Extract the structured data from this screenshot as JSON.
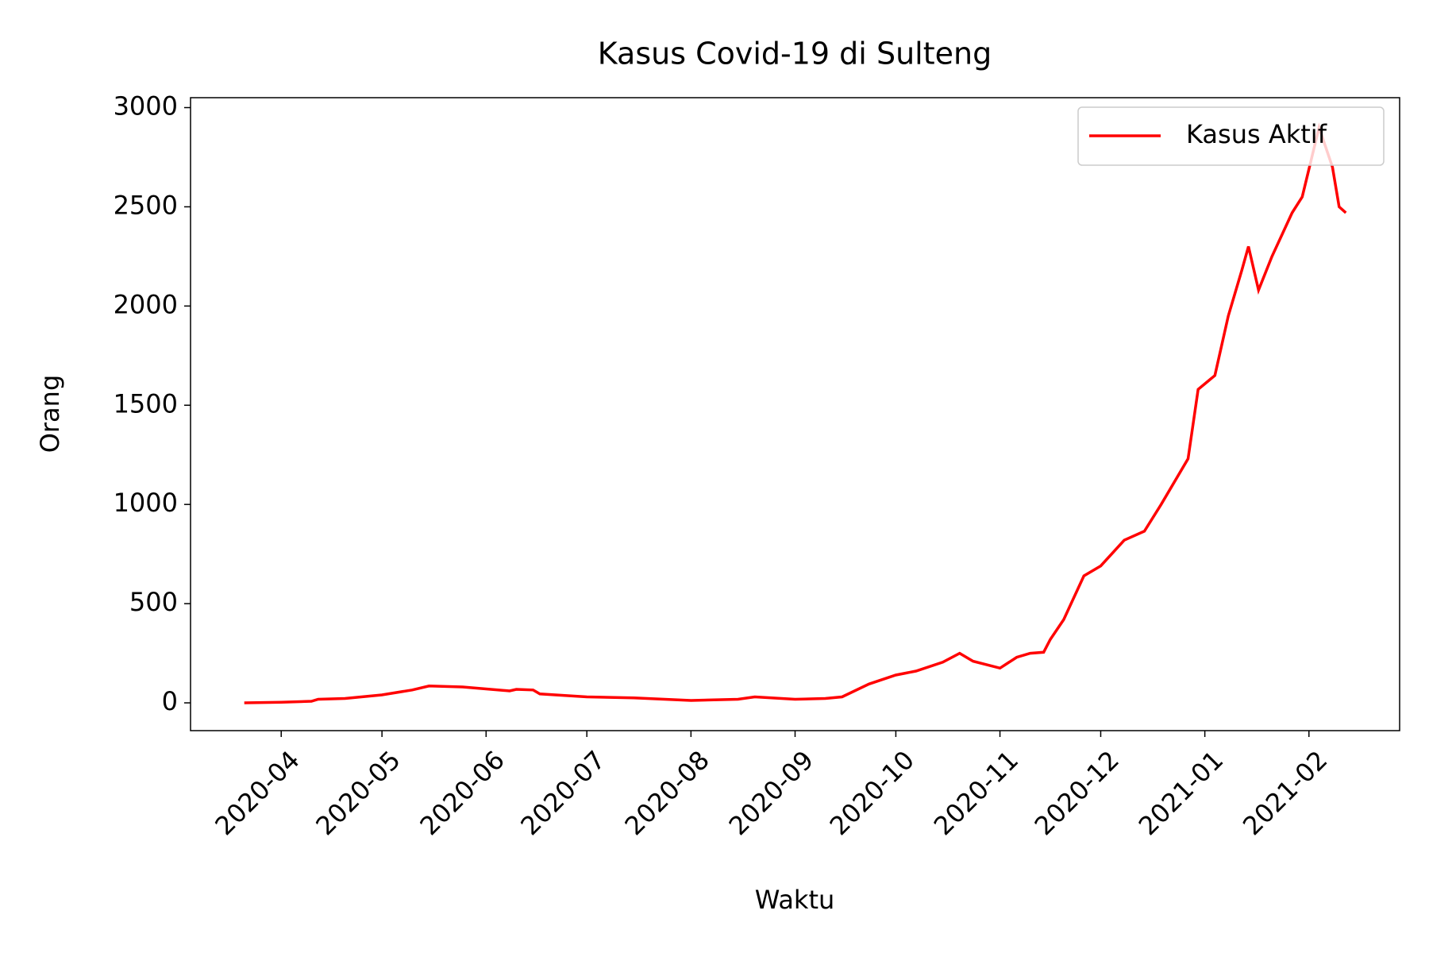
{
  "chart_data": {
    "type": "line",
    "title": "Kasus Covid-19 di Sulteng",
    "xlabel": "Waktu",
    "ylabel": "Orang",
    "x": [
      "2020-03-21",
      "2020-04-01",
      "2020-04-10",
      "2020-04-12",
      "2020-04-20",
      "2020-05-01",
      "2020-05-10",
      "2020-05-15",
      "2020-05-25",
      "2020-06-01",
      "2020-06-08",
      "2020-06-10",
      "2020-06-15",
      "2020-06-17",
      "2020-07-01",
      "2020-07-15",
      "2020-08-01",
      "2020-08-15",
      "2020-08-20",
      "2020-09-01",
      "2020-09-10",
      "2020-09-15",
      "2020-09-23",
      "2020-10-01",
      "2020-10-07",
      "2020-10-15",
      "2020-10-20",
      "2020-10-24",
      "2020-11-01",
      "2020-11-06",
      "2020-11-10",
      "2020-11-14",
      "2020-11-16",
      "2020-11-20",
      "2020-11-26",
      "2020-12-01",
      "2020-12-08",
      "2020-12-14",
      "2020-12-19",
      "2020-12-27",
      "2020-12-30",
      "2021-01-04",
      "2021-01-08",
      "2021-01-12",
      "2021-01-14",
      "2021-01-17",
      "2021-01-21",
      "2021-01-27",
      "2021-01-30",
      "2021-02-04",
      "2021-02-08",
      "2021-02-10",
      "2021-02-12"
    ],
    "series": [
      {
        "name": "Kasus Aktif",
        "color": "#ff0000",
        "values": [
          0,
          3,
          8,
          18,
          22,
          40,
          65,
          85,
          80,
          70,
          60,
          68,
          65,
          45,
          30,
          25,
          12,
          18,
          30,
          18,
          22,
          30,
          95,
          140,
          160,
          205,
          250,
          210,
          175,
          230,
          250,
          255,
          320,
          420,
          640,
          690,
          820,
          865,
          1000,
          1230,
          1580,
          1650,
          1950,
          2180,
          2300,
          2080,
          2250,
          2470,
          2550,
          2900,
          2700,
          2500,
          2470
        ]
      }
    ],
    "xlim": [
      "2020-03-05",
      "2021-02-28"
    ],
    "xticks": [
      "2020-04",
      "2020-05",
      "2020-06",
      "2020-07",
      "2020-08",
      "2020-09",
      "2020-10",
      "2020-11",
      "2020-12",
      "2021-01",
      "2021-02"
    ],
    "ylim": [
      -140,
      3050
    ],
    "yticks": [
      0,
      500,
      1000,
      1500,
      2000,
      2500,
      3000
    ],
    "legend": "upper right"
  }
}
